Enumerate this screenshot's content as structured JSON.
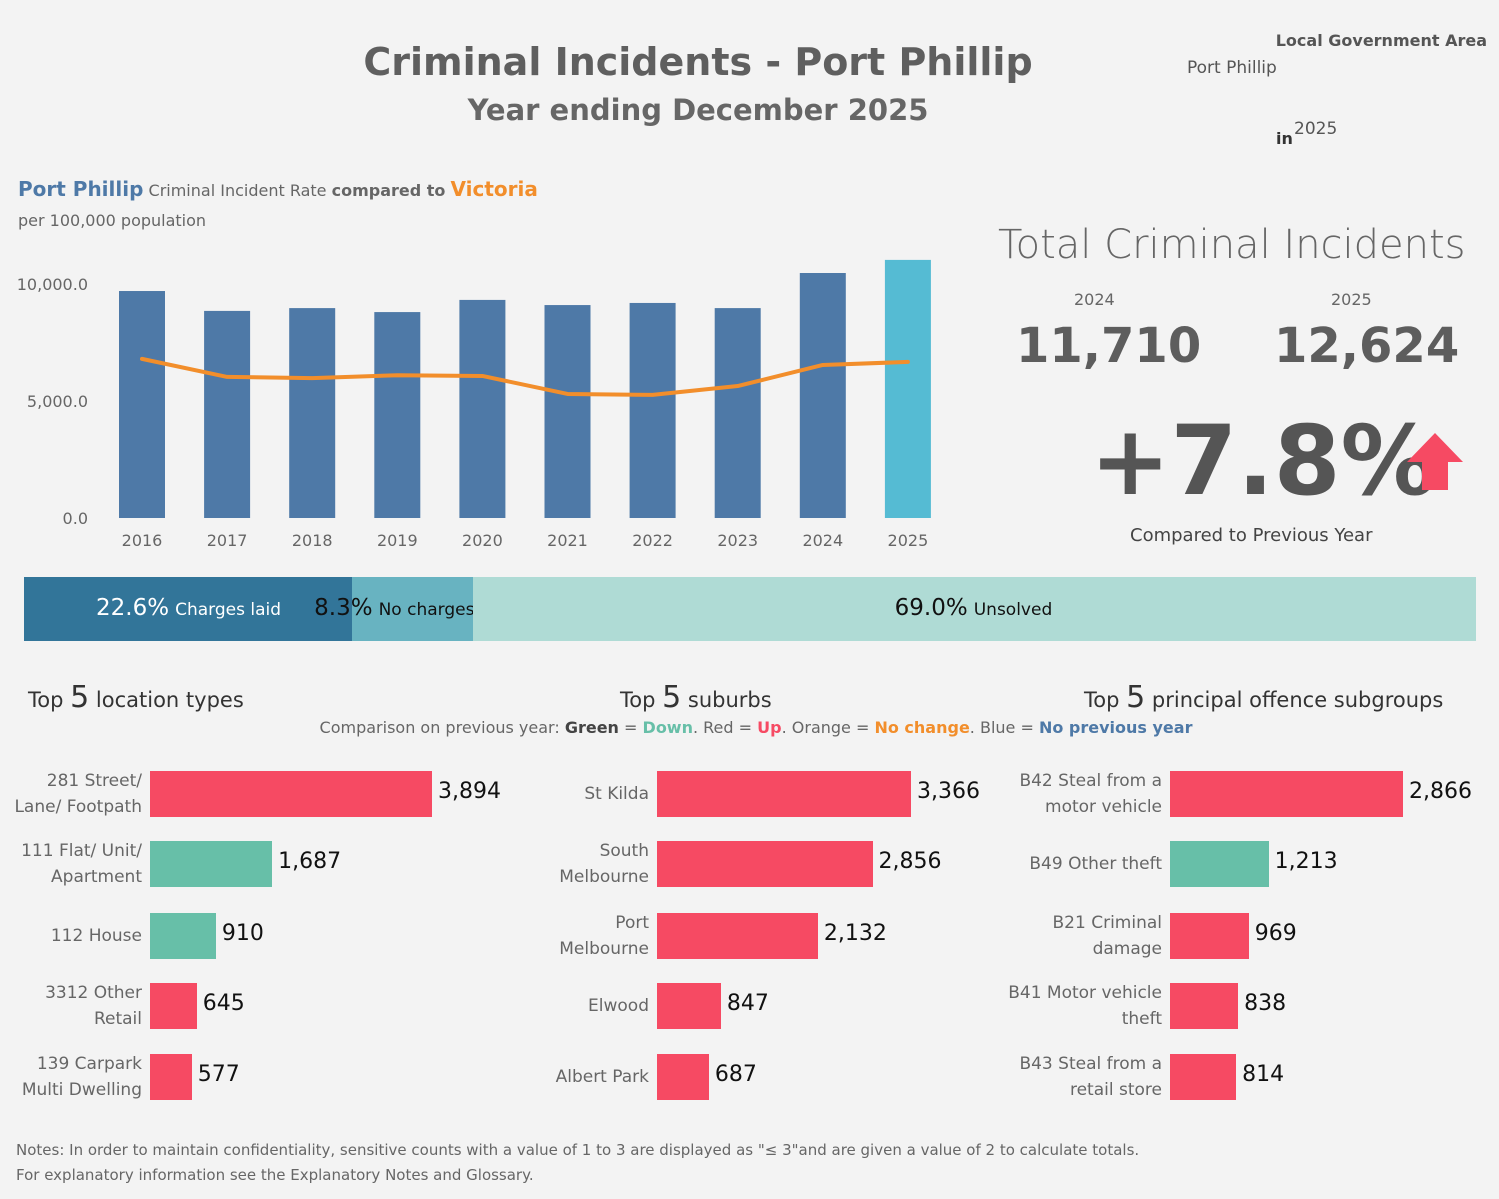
{
  "header": {
    "title": "Criminal Incidents - Port Phillip",
    "subtitle": "Year ending December 2025",
    "lga_label": "Local Government Area",
    "lga_value": "Port Phillip",
    "in_label": "in",
    "year": "2025"
  },
  "rate_header": {
    "area": "Port Phillip",
    "text1": "Criminal Incident Rate",
    "text2": "compared to",
    "compare": "Victoria",
    "sub": "per 100,000 population"
  },
  "colors": {
    "bar": "#4e79a7",
    "bar_current": "#55bbd3",
    "line": "#f28e2b",
    "up": "#f64a63",
    "down": "#67bfa8"
  },
  "chart_data": {
    "type": "bar",
    "categories": [
      "2016",
      "2017",
      "2018",
      "2019",
      "2020",
      "2021",
      "2022",
      "2023",
      "2024",
      "2025"
    ],
    "series": [
      {
        "name": "Port Phillip",
        "type": "bar",
        "values": [
          9700,
          8850,
          8970,
          8800,
          9320,
          9100,
          9190,
          8970,
          10470,
          11030
        ]
      },
      {
        "name": "Victoria",
        "type": "line",
        "values": [
          6800,
          6030,
          5980,
          6100,
          6070,
          5300,
          5260,
          5640,
          6540,
          6670
        ]
      }
    ],
    "yticks": [
      "0.0",
      "5,000.0",
      "10,000.0"
    ],
    "ylim": [
      0,
      11500
    ]
  },
  "kpi": {
    "title": "Total Criminal Incidents",
    "prev_year": "2024",
    "prev_value": "11,710",
    "cur_year": "2025",
    "cur_value": "12,624",
    "change": "+7.8%",
    "change_label": "Compared to Previous Year",
    "direction": "up"
  },
  "outcomes": [
    {
      "pct": "22.6%",
      "label": "Charges laid",
      "value": 22.6,
      "color": "#327599"
    },
    {
      "pct": "8.3%",
      "label": "No charges laid",
      "value": 8.3,
      "color": "#68b3c1"
    },
    {
      "pct": "69.0%",
      "label": "Unsolved",
      "value": 69.0,
      "color": "#afdbd5"
    }
  ],
  "panels": [
    {
      "title_pre": "Top",
      "num": "5",
      "title_post": "location types",
      "items": [
        {
          "l1": "281 Street/",
          "l2": "Lane/ Footpath",
          "value": 3894,
          "label": "3,894",
          "trend": "up"
        },
        {
          "l1": "111 Flat/ Unit/",
          "l2": "Apartment",
          "value": 1687,
          "label": "1,687",
          "trend": "down"
        },
        {
          "l1": "112 House",
          "l2": "",
          "value": 910,
          "label": "910",
          "trend": "down"
        },
        {
          "l1": "3312 Other",
          "l2": "Retail",
          "value": 645,
          "label": "645",
          "trend": "up"
        },
        {
          "l1": "139 Carpark",
          "l2": "Multi Dwelling",
          "value": 577,
          "label": "577",
          "trend": "up"
        }
      ]
    },
    {
      "title_pre": "Top",
      "num": "5",
      "title_post": "suburbs",
      "items": [
        {
          "l1": "St Kilda",
          "l2": "",
          "value": 3366,
          "label": "3,366",
          "trend": "up"
        },
        {
          "l1": "South",
          "l2": "Melbourne",
          "value": 2856,
          "label": "2,856",
          "trend": "up"
        },
        {
          "l1": "Port",
          "l2": "Melbourne",
          "value": 2132,
          "label": "2,132",
          "trend": "up"
        },
        {
          "l1": "Elwood",
          "l2": "",
          "value": 847,
          "label": "847",
          "trend": "up"
        },
        {
          "l1": "Albert Park",
          "l2": "",
          "value": 687,
          "label": "687",
          "trend": "up"
        }
      ]
    },
    {
      "title_pre": "Top",
      "num": "5",
      "title_post": "principal offence subgroups",
      "items": [
        {
          "l1": "B42 Steal from a",
          "l2": "motor vehicle",
          "value": 2866,
          "label": "2,866",
          "trend": "up"
        },
        {
          "l1": "B49 Other theft",
          "l2": "",
          "value": 1213,
          "label": "1,213",
          "trend": "down"
        },
        {
          "l1": "B21 Criminal",
          "l2": "damage",
          "value": 969,
          "label": "969",
          "trend": "up"
        },
        {
          "l1": "B41 Motor vehicle",
          "l2": "theft",
          "value": 838,
          "label": "838",
          "trend": "up"
        },
        {
          "l1": "B43 Steal from a",
          "l2": "retail store",
          "value": 814,
          "label": "814",
          "trend": "up"
        }
      ]
    }
  ],
  "legend": {
    "prefix": "Comparison on previous year:",
    "g": "Green",
    "eq": " = ",
    "down": "Down",
    "r": ". Red = ",
    "up": "Up",
    "o": ". Orange = ",
    "nochange": "No change",
    "b": ". Blue = ",
    "noprev": "No previous year"
  },
  "notes": {
    "line1": "Notes:  In order to maintain confidentiality, sensitive counts with a value of 1 to 3  are displayed as \"≤ 3\"and are given a value of 2 to calculate totals.",
    "line2": "For explanatory information see the Explanatory Notes and Glossary."
  }
}
